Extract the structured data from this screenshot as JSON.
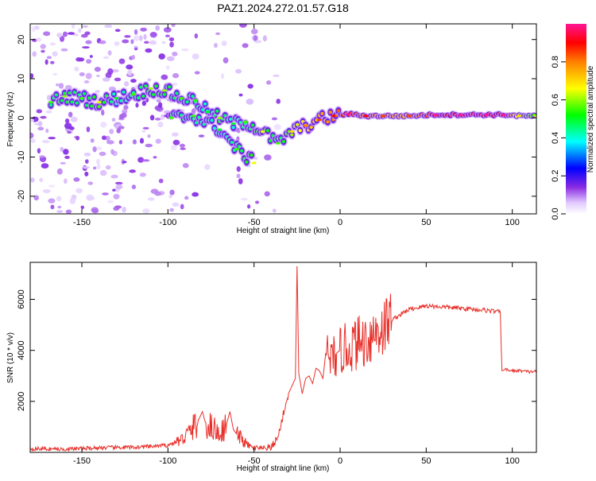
{
  "title": "PAZ1.2024.272.01.57.G18",
  "colors": {
    "snr_line": "#e8302a",
    "spectrum_background": "#ffffff"
  },
  "chart_data": [
    {
      "type": "heatmap",
      "xlabel": "Height of straight line (km)",
      "ylabel": "Frequency (Hz)",
      "xlim": [
        -180,
        114
      ],
      "ylim": [
        -24.5,
        24
      ],
      "xticks": [
        -150,
        -100,
        -50,
        0,
        50,
        100
      ],
      "yticks": [
        -20,
        -10,
        0,
        10,
        20
      ],
      "colorbar": {
        "label": "Normalized spectral amplitude",
        "range": [
          0,
          1
        ],
        "ticks": [
          "0.0",
          "0.2",
          "0.4",
          "0.6",
          "0.8"
        ],
        "tick_values": [
          0,
          0.2,
          0.4,
          0.6,
          0.8
        ],
        "colormap": [
          "#ffffff",
          "#e0c8ff",
          "#8a2be2",
          "#0000ff",
          "#00ffff",
          "#00ff00",
          "#ffff00",
          "#ff8000",
          "#ff0000",
          "#ff1493"
        ]
      },
      "ridge": [
        {
          "x": -168,
          "f": 4.0,
          "a": 0.45
        },
        {
          "x": -160,
          "f": 5.5,
          "a": 0.5
        },
        {
          "x": -150,
          "f": 5.0,
          "a": 0.45
        },
        {
          "x": -140,
          "f": 4.0,
          "a": 0.55
        },
        {
          "x": -130,
          "f": 5.0,
          "a": 0.4
        },
        {
          "x": -120,
          "f": 6.0,
          "a": 0.45
        },
        {
          "x": -110,
          "f": 7.5,
          "a": 0.5
        },
        {
          "x": -102,
          "f": 7.0,
          "a": 0.5
        },
        {
          "x": -92,
          "f": 5.0,
          "a": 0.45
        },
        {
          "x": -84,
          "f": 4.5,
          "a": 0.45
        },
        {
          "x": -77,
          "f": 1.5,
          "a": 0.4
        },
        {
          "x": -70,
          "f": 0.0,
          "a": 0.5
        },
        {
          "x": -62,
          "f": -1.5,
          "a": 0.4
        },
        {
          "x": -55,
          "f": -1.0,
          "a": 0.45
        },
        {
          "x": -45,
          "f": -3.5,
          "a": 0.55
        },
        {
          "x": -36,
          "f": -6.5,
          "a": 0.45
        },
        {
          "x": -28,
          "f": -3.5,
          "a": 0.6
        },
        {
          "x": -20,
          "f": -2.0,
          "a": 0.7
        },
        {
          "x": -12,
          "f": -0.5,
          "a": 0.75
        },
        {
          "x": -4,
          "f": 0.5,
          "a": 0.8
        },
        {
          "x": 5,
          "f": 1.0,
          "a": 0.9
        },
        {
          "x": 15,
          "f": 0.5,
          "a": 0.8
        },
        {
          "x": 25,
          "f": 0.5,
          "a": 0.75
        },
        {
          "x": 40,
          "f": 0.5,
          "a": 0.75
        },
        {
          "x": 55,
          "f": 0.8,
          "a": 0.9
        },
        {
          "x": 70,
          "f": 0.8,
          "a": 0.95
        },
        {
          "x": 85,
          "f": 0.8,
          "a": 0.95
        },
        {
          "x": 95,
          "f": 0.8,
          "a": 0.9
        },
        {
          "x": 104,
          "f": 0.5,
          "a": 0.6
        },
        {
          "x": 114,
          "f": 0.5,
          "a": 0.55
        }
      ],
      "secondary_ridge": [
        {
          "x": -98,
          "f": 0.0,
          "a": 0.45
        },
        {
          "x": -85,
          "f": 0.5,
          "a": 0.45
        },
        {
          "x": -70,
          "f": -3.0,
          "a": 0.4
        },
        {
          "x": -60,
          "f": -8.0,
          "a": 0.45
        },
        {
          "x": -50,
          "f": -11.5,
          "a": 0.55
        }
      ]
    },
    {
      "type": "line",
      "xlabel": "Height of straight line (km)",
      "ylabel": "SNR (10 * v/v)",
      "xlim": [
        -180,
        114
      ],
      "ylim": [
        0,
        7450
      ],
      "xticks": [
        -150,
        -100,
        -50,
        0,
        50,
        100
      ],
      "yticks": [
        2000,
        4000,
        6000
      ],
      "series": [
        {
          "x": [
            -180,
            -160,
            -140,
            -120,
            -110,
            -100,
            -92,
            -86,
            -82,
            -80,
            -78,
            -74,
            -70,
            -66,
            -64,
            -62,
            -60,
            -57,
            -54,
            -50,
            -45,
            -40,
            -36,
            -33,
            -30,
            -28,
            -26,
            -25,
            -24,
            -22,
            -20,
            -18,
            -16,
            -14,
            -12,
            -10,
            -8,
            -5,
            -2,
            0,
            5,
            10,
            15,
            20,
            25,
            30,
            35,
            40,
            50,
            60,
            70,
            80,
            88,
            93,
            94,
            96,
            100,
            105,
            110,
            114
          ],
          "y": [
            150,
            120,
            180,
            200,
            230,
            280,
            500,
            900,
            1300,
            1600,
            1100,
            1000,
            700,
            1100,
            1600,
            900,
            700,
            500,
            300,
            150,
            120,
            200,
            600,
            1500,
            2300,
            2600,
            2900,
            7300,
            3100,
            2300,
            2900,
            3000,
            2700,
            3300,
            3200,
            2900,
            4100,
            3600,
            3900,
            4000,
            4100,
            4300,
            4400,
            4700,
            4900,
            5200,
            5400,
            5600,
            5750,
            5700,
            5650,
            5600,
            5550,
            5500,
            3200,
            3250,
            3200,
            3200,
            3150,
            3200
          ]
        }
      ]
    }
  ]
}
